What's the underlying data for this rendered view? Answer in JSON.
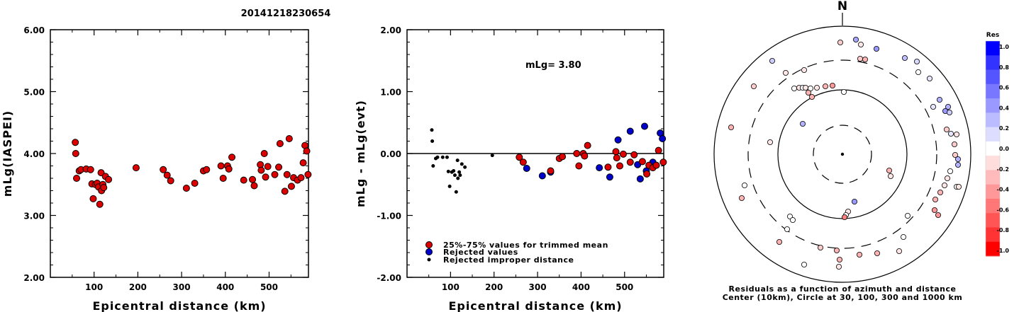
{
  "title": "20141218230654",
  "chart_data": [
    {
      "type": "scatter",
      "ylabel": "mLg(IASPEI)",
      "xlabel": "Epicentral distance (km)",
      "xlim": [
        0,
        590
      ],
      "ylim": [
        2,
        6
      ],
      "xticks": [
        "100",
        "200",
        "300",
        "400",
        "500"
      ],
      "yticks": [
        "2.00",
        "3.00",
        "4.00",
        "5.00",
        "6.00"
      ],
      "points": [
        [
          57,
          4.18
        ],
        [
          58,
          4.0
        ],
        [
          60,
          3.6
        ],
        [
          66,
          3.72
        ],
        [
          70,
          3.74
        ],
        [
          82,
          3.75
        ],
        [
          92,
          3.74
        ],
        [
          95,
          3.51
        ],
        [
          98,
          3.27
        ],
        [
          103,
          3.5
        ],
        [
          107,
          3.52
        ],
        [
          110,
          3.46
        ],
        [
          113,
          3.18
        ],
        [
          116,
          3.69
        ],
        [
          117,
          3.4
        ],
        [
          120,
          3.5
        ],
        [
          122,
          3.45
        ],
        [
          126,
          3.63
        ],
        [
          133,
          3.58
        ],
        [
          196,
          3.77
        ],
        [
          258,
          3.74
        ],
        [
          267,
          3.65
        ],
        [
          275,
          3.56
        ],
        [
          311,
          3.44
        ],
        [
          330,
          3.52
        ],
        [
          350,
          3.72
        ],
        [
          357,
          3.74
        ],
        [
          390,
          3.8
        ],
        [
          395,
          3.6
        ],
        [
          405,
          3.8
        ],
        [
          408,
          3.75
        ],
        [
          415,
          3.94
        ],
        [
          442,
          3.57
        ],
        [
          462,
          3.58
        ],
        [
          466,
          3.48
        ],
        [
          480,
          3.82
        ],
        [
          482,
          3.73
        ],
        [
          489,
          4.0
        ],
        [
          492,
          3.62
        ],
        [
          497,
          3.79
        ],
        [
          513,
          3.66
        ],
        [
          522,
          3.78
        ],
        [
          525,
          4.16
        ],
        [
          536,
          3.39
        ],
        [
          541,
          3.66
        ],
        [
          546,
          4.24
        ],
        [
          551,
          3.47
        ],
        [
          556,
          3.61
        ],
        [
          565,
          3.57
        ],
        [
          573,
          3.61
        ],
        [
          578,
          3.85
        ],
        [
          582,
          4.13
        ],
        [
          586,
          4.04
        ],
        [
          589,
          3.66
        ]
      ]
    },
    {
      "type": "scatter",
      "ylabel": "mLg - mLg(evt)",
      "xlabel": "Epicentral distance (km)",
      "xlim": [
        0,
        590
      ],
      "ylim": [
        -2,
        2
      ],
      "xticks": [
        "100",
        "200",
        "300",
        "400",
        "500"
      ],
      "yticks": [
        "-2.00",
        "-1.00",
        "0.00",
        "1.00",
        "2.00"
      ],
      "annotation": "mLg= 3.80",
      "legend": [
        {
          "label": "25%-75% values for trimmed mean",
          "color": "#dd0000"
        },
        {
          "label": "Rejected values",
          "color": "#0000cc"
        },
        {
          "label": "Rejected improper distance",
          "color": "#000000"
        }
      ],
      "series_trimmed": [
        [
          258,
          -0.06
        ],
        [
          267,
          -0.14
        ],
        [
          330,
          -0.28
        ],
        [
          350,
          -0.08
        ],
        [
          357,
          -0.05
        ],
        [
          390,
          0.0
        ],
        [
          395,
          -0.2
        ],
        [
          405,
          0.0
        ],
        [
          408,
          -0.04
        ],
        [
          415,
          0.13
        ],
        [
          462,
          -0.22
        ],
        [
          480,
          0.03
        ],
        [
          482,
          -0.07
        ],
        [
          489,
          -0.2
        ],
        [
          497,
          -0.01
        ],
        [
          513,
          -0.14
        ],
        [
          522,
          -0.02
        ],
        [
          541,
          -0.13
        ],
        [
          551,
          -0.33
        ],
        [
          556,
          -0.19
        ],
        [
          565,
          -0.23
        ],
        [
          573,
          -0.19
        ],
        [
          578,
          0.05
        ],
        [
          589,
          -0.14
        ]
      ],
      "series_rejected": [
        [
          275,
          -0.24
        ],
        [
          311,
          -0.36
        ],
        [
          330,
          -0.3
        ],
        [
          442,
          -0.23
        ],
        [
          466,
          -0.38
        ],
        [
          485,
          0.22
        ],
        [
          513,
          0.36
        ],
        [
          530,
          -0.18
        ],
        [
          536,
          -0.41
        ],
        [
          546,
          0.44
        ],
        [
          550,
          -0.28
        ],
        [
          565,
          -0.14
        ],
        [
          582,
          0.33
        ],
        [
          587,
          0.24
        ]
      ],
      "series_improper": [
        [
          57,
          0.38
        ],
        [
          58,
          0.2
        ],
        [
          60,
          -0.2
        ],
        [
          66,
          -0.08
        ],
        [
          70,
          -0.06
        ],
        [
          82,
          -0.06
        ],
        [
          92,
          -0.06
        ],
        [
          95,
          -0.29
        ],
        [
          98,
          -0.53
        ],
        [
          103,
          -0.3
        ],
        [
          107,
          -0.28
        ],
        [
          110,
          -0.35
        ],
        [
          113,
          -0.62
        ],
        [
          116,
          -0.11
        ],
        [
          117,
          -0.4
        ],
        [
          120,
          -0.3
        ],
        [
          122,
          -0.35
        ],
        [
          126,
          -0.17
        ],
        [
          133,
          -0.22
        ],
        [
          196,
          -0.03
        ]
      ]
    }
  ],
  "polar": {
    "north_label": "N",
    "caption_line1": "Residuals as a function of azimuth and distance",
    "caption_line2": "Center (10km), Circle at 30, 100, 300 and 1000 km",
    "colorbar_title": "Res",
    "colorbar_labels": [
      "1.0",
      "0.8",
      "0.6",
      "0.4",
      "0.2",
      "0.0",
      "-0.2",
      "-0.4",
      "-0.6",
      "-0.8",
      "-1.0"
    ],
    "colorbar_colors": [
      "#0000ff",
      "#3333ff",
      "#5555ff",
      "#7777ff",
      "#9999ff",
      "#bbbbff",
      "#ddddff",
      "#ffffff",
      "#ffdddd",
      "#ffbbbb",
      "#ff9999",
      "#ff7777",
      "#ff5555",
      "#ff3333",
      "#ff0000"
    ],
    "stations": [
      [
        1207,
        56,
        0.35
      ],
      [
        1214,
        63,
        -0.1
      ],
      [
        1236,
        69,
        0.4
      ],
      [
        1185,
        60,
        -0.2
      ],
      [
        1213,
        83,
        -0.2
      ],
      [
        1220,
        84,
        -0.3
      ],
      [
        1276,
        82,
        0.25
      ],
      [
        1293,
        87,
        0.15
      ],
      [
        1089,
        86,
        0.2
      ],
      [
        1134,
        99,
        -0.1
      ],
      [
        1108,
        103,
        -0.1
      ],
      [
        1295,
        102,
        0.0
      ],
      [
        1311,
        111,
        0.1
      ],
      [
        1063,
        122,
        -0.2
      ],
      [
        1120,
        125,
        0.0
      ],
      [
        1127,
        124,
        -0.1
      ],
      [
        1132,
        124,
        0.0
      ],
      [
        1136,
        124,
        -0.1
      ],
      [
        1143,
        125,
        0.0
      ],
      [
        1152,
        124,
        -0.1
      ],
      [
        1164,
        122,
        -0.3
      ],
      [
        1140,
        131,
        -0.3
      ],
      [
        1145,
        137,
        -0.3
      ],
      [
        1174,
        121,
        -0.4
      ],
      [
        1190,
        130,
        0.0
      ],
      [
        1325,
        141,
        0.3
      ],
      [
        1337,
        151,
        0.3
      ],
      [
        1316,
        151,
        0.1
      ],
      [
        1333,
        157,
        0.4
      ],
      [
        1339,
        159,
        0.2
      ],
      [
        1132,
        175,
        0.3
      ],
      [
        1335,
        183,
        -0.2
      ],
      [
        1341,
        189,
        0.1
      ],
      [
        1349,
        190,
        -0.1
      ],
      [
        1031,
        180,
        -0.3
      ],
      [
        1086,
        201,
        -0.1
      ],
      [
        1346,
        204,
        -0.2
      ],
      [
        1347,
        219,
        -0.2
      ],
      [
        1351,
        225,
        0.3
      ],
      [
        1351,
        233,
        0.3
      ],
      [
        1340,
        242,
        0.0
      ],
      [
        1254,
        241,
        -0.3
      ],
      [
        1256,
        249,
        -0.1
      ],
      [
        1336,
        252,
        -0.1
      ],
      [
        1332,
        262,
        -0.1
      ],
      [
        1326,
        272,
        -0.3
      ],
      [
        1349,
        264,
        0.0
      ],
      [
        1352,
        264,
        -0.1
      ],
      [
        1050,
        262,
        0.0
      ],
      [
        1046,
        280,
        -0.3
      ],
      [
        1319,
        282,
        -0.3
      ],
      [
        1318,
        297,
        -0.4
      ],
      [
        1323,
        304,
        -0.4
      ],
      [
        1205,
        285,
        0.4
      ],
      [
        1196,
        299,
        -0.1
      ],
      [
        1193,
        304,
        0.0
      ],
      [
        1191,
        307,
        -0.5
      ],
      [
        1114,
        306,
        0.0
      ],
      [
        1118,
        311,
        0.0
      ],
      [
        1280,
        305,
        0.0
      ],
      [
        1110,
        324,
        0.0
      ],
      [
        1274,
        335,
        0.0
      ],
      [
        1099,
        342,
        -0.3
      ],
      [
        1157,
        350,
        -0.2
      ],
      [
        1180,
        354,
        -0.3
      ],
      [
        1184,
        367,
        -0.3
      ],
      [
        1237,
        358,
        -0.3
      ],
      [
        1212,
        360,
        -0.3
      ],
      [
        1268,
        355,
        -0.1
      ],
      [
        1134,
        374,
        0.0
      ],
      [
        1183,
        377,
        -0.1
      ]
    ]
  }
}
